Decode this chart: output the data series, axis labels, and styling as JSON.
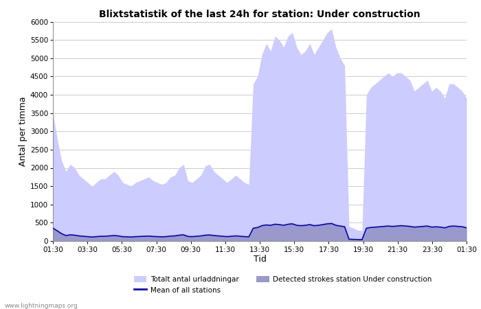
{
  "title": "Blixtstatistik of the last 24h for station: Under construction",
  "xlabel": "Tid",
  "ylabel": "Antal per timma",
  "xlim_labels": [
    "01:30",
    "03:30",
    "05:30",
    "07:30",
    "09:30",
    "11:30",
    "13:30",
    "15:30",
    "17:30",
    "19:30",
    "21:30",
    "23:30",
    "01:30"
  ],
  "ylim": [
    0,
    6000
  ],
  "yticks": [
    0,
    500,
    1000,
    1500,
    2000,
    2500,
    3000,
    3500,
    4000,
    4500,
    5000,
    5500,
    6000
  ],
  "bg_color": "#ffffff",
  "grid_color": "#cccccc",
  "fill_total_color": "#ccccff",
  "fill_station_color": "#9999cc",
  "line_color": "#0000bb",
  "watermark": "www.lightningmaps.org",
  "legend_total": "Totalt antal urladdningar",
  "legend_station": "Detected strokes station Under construction",
  "legend_mean": "Mean of all stations",
  "n_points": 96,
  "total_data": [
    3500,
    2800,
    2200,
    1900,
    2100,
    2000,
    1800,
    1700,
    1600,
    1500,
    1600,
    1700,
    1700,
    1800,
    1900,
    1800,
    1600,
    1550,
    1500,
    1600,
    1650,
    1700,
    1750,
    1650,
    1600,
    1550,
    1600,
    1750,
    1800,
    2000,
    2100,
    1650,
    1600,
    1700,
    1800,
    2050,
    2100,
    1900,
    1800,
    1700,
    1600,
    1700,
    1800,
    1700,
    1600,
    1550,
    4300,
    4500,
    5100,
    5400,
    5200,
    5600,
    5500,
    5300,
    5600,
    5700,
    5300,
    5100,
    5200,
    5400,
    5100,
    5300,
    5500,
    5700,
    5800,
    5300,
    5000,
    4800,
    400,
    350,
    300,
    280,
    4000,
    4200,
    4300,
    4400,
    4500,
    4600,
    4500,
    4600,
    4600,
    4500,
    4400,
    4100,
    4200,
    4300,
    4400,
    4100,
    4200,
    4100,
    3900,
    4300,
    4300,
    4200,
    4100,
    3900
  ],
  "station_data": [
    350,
    280,
    200,
    150,
    170,
    160,
    140,
    130,
    120,
    110,
    120,
    130,
    130,
    140,
    150,
    140,
    120,
    115,
    110,
    120,
    125,
    130,
    135,
    125,
    120,
    115,
    120,
    135,
    140,
    160,
    170,
    125,
    120,
    130,
    140,
    160,
    165,
    150,
    140,
    130,
    120,
    130,
    140,
    130,
    120,
    115,
    350,
    370,
    420,
    440,
    430,
    460,
    450,
    430,
    460,
    470,
    430,
    420,
    430,
    450,
    420,
    430,
    450,
    470,
    480,
    430,
    410,
    390,
    50,
    45,
    40,
    38,
    350,
    370,
    380,
    390,
    400,
    410,
    400,
    410,
    420,
    410,
    400,
    380,
    390,
    400,
    410,
    380,
    390,
    380,
    360,
    400,
    410,
    400,
    390,
    360
  ],
  "mean_data": [
    350,
    280,
    200,
    150,
    170,
    160,
    140,
    130,
    120,
    110,
    120,
    130,
    130,
    140,
    150,
    140,
    120,
    115,
    110,
    120,
    125,
    130,
    135,
    125,
    120,
    115,
    120,
    135,
    140,
    160,
    170,
    125,
    120,
    130,
    140,
    160,
    165,
    150,
    140,
    130,
    120,
    130,
    140,
    130,
    120,
    115,
    350,
    370,
    420,
    440,
    430,
    460,
    450,
    430,
    460,
    470,
    430,
    420,
    430,
    450,
    420,
    430,
    450,
    470,
    480,
    430,
    410,
    390,
    50,
    45,
    40,
    38,
    350,
    370,
    380,
    390,
    400,
    410,
    400,
    410,
    420,
    410,
    400,
    380,
    390,
    400,
    410,
    380,
    390,
    380,
    360,
    400,
    410,
    400,
    390,
    360
  ]
}
